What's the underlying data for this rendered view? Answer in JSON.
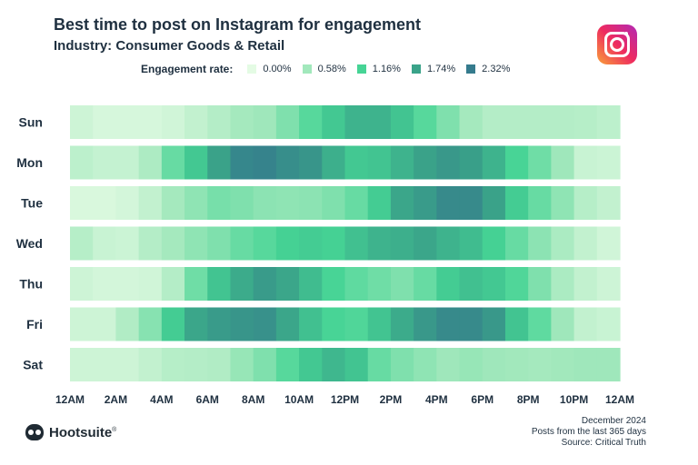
{
  "header": {
    "title": "Best time to post on Instagram for engagement",
    "subtitle": "Industry: Consumer Goods & Retail"
  },
  "legend": {
    "title": "Engagement rate:",
    "items": [
      {
        "label": "0.00%",
        "color": "#e4fbe4"
      },
      {
        "label": "0.58%",
        "color": "#a2e8bc"
      },
      {
        "label": "1.16%",
        "color": "#46d495"
      },
      {
        "label": "1.74%",
        "color": "#3aa389"
      },
      {
        "label": "2.32%",
        "color": "#357b8d"
      }
    ]
  },
  "chart_data": {
    "type": "heatmap",
    "title": "Best time to post on Instagram for engagement",
    "subtitle": "Industry: Consumer Goods & Retail",
    "scale_min": 0,
    "scale_max": 2.32,
    "unit": "%",
    "y_categories": [
      "Sun",
      "Mon",
      "Tue",
      "Wed",
      "Thu",
      "Fri",
      "Sat"
    ],
    "x_tick_labels": [
      "12AM",
      "2AM",
      "4AM",
      "6AM",
      "8AM",
      "10AM",
      "12PM",
      "2PM",
      "4PM",
      "6PM",
      "8PM",
      "10PM",
      "12AM"
    ],
    "hours": 24,
    "values": [
      [
        0.2,
        0.12,
        0.12,
        0.12,
        0.18,
        0.3,
        0.42,
        0.55,
        0.6,
        0.8,
        1.05,
        1.3,
        1.55,
        1.55,
        1.35,
        1.05,
        0.8,
        0.55,
        0.42,
        0.42,
        0.42,
        0.42,
        0.4,
        0.35
      ],
      [
        0.35,
        0.28,
        0.28,
        0.48,
        0.95,
        1.3,
        1.75,
        2.15,
        2.2,
        2.05,
        1.95,
        1.6,
        1.3,
        1.35,
        1.55,
        1.75,
        1.9,
        1.8,
        1.55,
        1.15,
        0.9,
        0.6,
        0.25,
        0.22
      ],
      [
        0.1,
        0.1,
        0.15,
        0.3,
        0.55,
        0.7,
        0.85,
        0.8,
        0.72,
        0.7,
        0.72,
        0.8,
        0.95,
        1.25,
        1.7,
        1.85,
        2.1,
        2.1,
        1.75,
        1.25,
        0.95,
        0.7,
        0.4,
        0.3
      ],
      [
        0.4,
        0.25,
        0.22,
        0.42,
        0.55,
        0.7,
        0.8,
        0.95,
        1.05,
        1.2,
        1.25,
        1.2,
        1.4,
        1.55,
        1.6,
        1.7,
        1.55,
        1.45,
        1.2,
        0.95,
        0.72,
        0.5,
        0.3,
        0.18
      ],
      [
        0.2,
        0.15,
        0.15,
        0.18,
        0.42,
        0.9,
        1.35,
        1.65,
        1.85,
        1.7,
        1.45,
        1.15,
        1.0,
        0.9,
        0.8,
        0.95,
        1.25,
        1.4,
        1.3,
        1.1,
        0.8,
        0.5,
        0.3,
        0.2
      ],
      [
        0.2,
        0.2,
        0.45,
        0.75,
        1.25,
        1.7,
        1.85,
        1.95,
        2.0,
        1.7,
        1.4,
        1.15,
        1.1,
        1.35,
        1.65,
        1.9,
        2.1,
        2.1,
        1.9,
        1.35,
        1.0,
        0.6,
        0.3,
        0.25
      ],
      [
        0.2,
        0.2,
        0.2,
        0.3,
        0.4,
        0.42,
        0.45,
        0.65,
        0.8,
        1.05,
        1.3,
        1.5,
        1.35,
        0.95,
        0.8,
        0.7,
        0.6,
        0.65,
        0.6,
        0.58,
        0.55,
        0.58,
        0.6,
        0.6
      ]
    ]
  },
  "source": {
    "lines": [
      "December 2024",
      "Posts from the last 365 days",
      "Source: Critical Truth"
    ]
  },
  "brand": {
    "name": "Hootsuite",
    "mark": "®"
  }
}
